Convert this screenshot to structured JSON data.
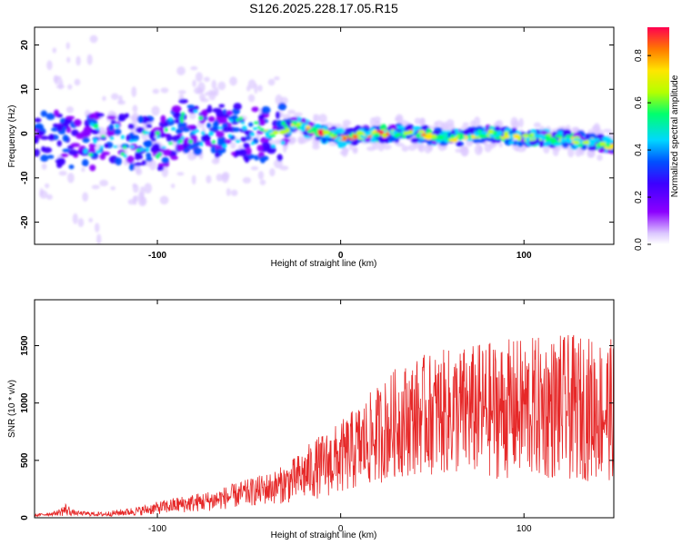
{
  "title": "S126.2025.228.17.05.R15",
  "chart_data": [
    {
      "type": "heatmap",
      "name": "spectrogram",
      "xlabel": "Height of straight line (km)",
      "ylabel": "Frequency (Hz)",
      "xlim": [
        -167,
        149
      ],
      "ylim": [
        -25,
        24
      ],
      "xticks": [
        -100,
        0,
        100
      ],
      "xtick_labels": [
        "-100",
        "0",
        "100"
      ],
      "yticks": [
        -20,
        -10,
        0,
        10,
        20
      ],
      "ytick_labels": [
        "-20",
        "-10",
        "0",
        "10",
        "20"
      ],
      "colorbar": {
        "label": "Normalized spectral amplitude",
        "range": [
          0.0,
          0.92
        ],
        "ticks": [
          0.0,
          0.2,
          0.4,
          0.6,
          0.8
        ],
        "tick_labels": [
          "0.0",
          "0.2",
          "0.4",
          "0.6",
          "0.8"
        ],
        "colormap": [
          "#ffffff",
          "#dcc8ff",
          "#8c00ff",
          "#3c00ff",
          "#0050ff",
          "#00d8ff",
          "#00ff6e",
          "#b4ff00",
          "#ffe600",
          "#ff7800",
          "#ff0050"
        ]
      },
      "ridge": {
        "description_points_x": [
          -160,
          -140,
          -120,
          -100,
          -85,
          -70,
          -50,
          -35,
          -25,
          -10,
          0,
          20,
          40,
          60,
          80,
          100,
          120,
          140,
          149
        ],
        "description_points_freq": [
          -1,
          -2,
          -1,
          -3,
          2,
          1,
          0,
          0,
          2,
          0,
          -1,
          0,
          0,
          -1,
          0,
          -1,
          -1,
          -2,
          -3
        ]
      }
    },
    {
      "type": "line",
      "name": "snr",
      "xlabel": "Height of straight line (km)",
      "ylabel": "SNR (10 * v/v)",
      "xlim": [
        -167,
        149
      ],
      "ylim": [
        0,
        1900
      ],
      "xticks": [
        -100,
        0,
        100
      ],
      "xtick_labels": [
        "-100",
        "0",
        "100"
      ],
      "yticks": [
        0,
        500,
        1000,
        1500
      ],
      "ytick_labels": [
        "0",
        "500",
        "1000",
        "1500"
      ],
      "color": "#e62828",
      "envelope_x": [
        -167,
        -155,
        -150,
        -145,
        -130,
        -110,
        -90,
        -70,
        -50,
        -35,
        -25,
        -15,
        0,
        10,
        20,
        30,
        45,
        60,
        80,
        100,
        120,
        140,
        149
      ],
      "envelope_mean": [
        20,
        40,
        70,
        40,
        30,
        60,
        110,
        150,
        220,
        270,
        330,
        420,
        520,
        620,
        720,
        830,
        900,
        920,
        940,
        950,
        960,
        950,
        940
      ],
      "envelope_amp": [
        10,
        20,
        60,
        20,
        20,
        40,
        70,
        90,
        120,
        150,
        200,
        260,
        320,
        380,
        430,
        480,
        520,
        560,
        600,
        620,
        640,
        630,
        620
      ]
    }
  ]
}
